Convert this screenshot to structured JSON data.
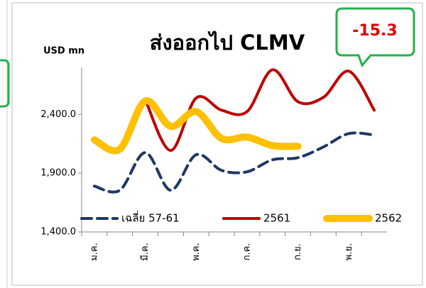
{
  "chart_data": {
    "type": "line",
    "title": "ส่งออกไป CLMV",
    "y_label": "USD mn",
    "annotation": "-15.3",
    "categories": [
      "ม.ค.",
      null,
      "มี.ค.",
      null,
      "พ.ค.",
      null,
      "ก.ค.",
      null,
      "ก.ย.",
      null,
      "พ.ย.",
      null
    ],
    "series": [
      {
        "name": "เฉลี่ย 57-61",
        "color": "#1f3864",
        "dash": true,
        "values": [
          1790,
          1755,
          2075,
          1755,
          2057,
          1924,
          1912,
          2014,
          2032,
          2123,
          2237,
          2225
        ]
      },
      {
        "name": "2561",
        "color": "#c00000",
        "values": [
          null,
          null,
          2527,
          2093,
          2539,
          2436,
          2424,
          2780,
          2508,
          2545,
          2768,
          2436
        ]
      },
      {
        "name": "2562",
        "color": "#ffc000",
        "values": [
          2183,
          2105,
          2514,
          2298,
          2424,
          2195,
          2207,
          2135,
          2129,
          null,
          null,
          null
        ]
      }
    ],
    "ylim": [
      1400,
      2800
    ],
    "yticks": [
      {
        "value": 1400,
        "label": "1,400.0"
      },
      {
        "value": 1900,
        "label": "1,900.0"
      },
      {
        "value": 2400,
        "label": "2,400.0"
      }
    ],
    "legend": "bottom"
  }
}
